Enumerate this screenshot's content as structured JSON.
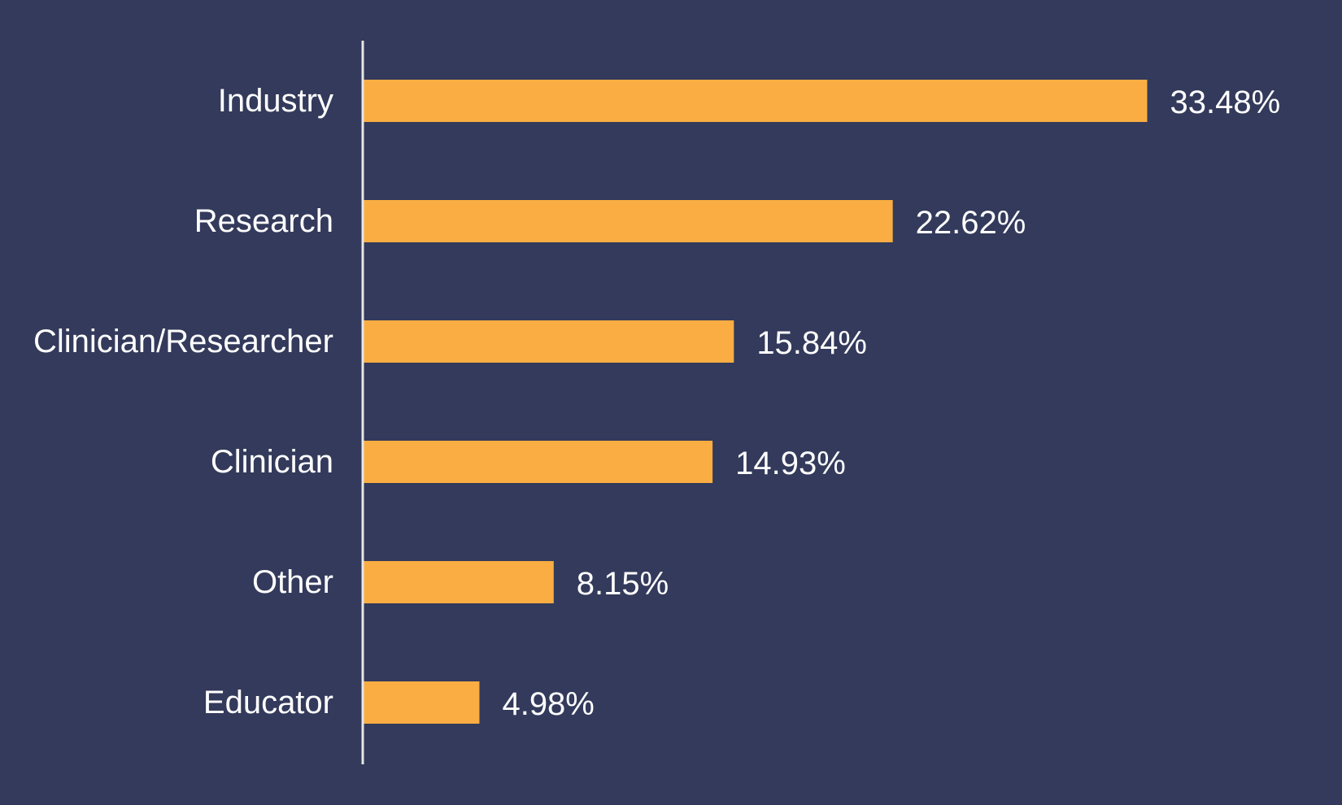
{
  "chart_data": {
    "type": "bar",
    "orientation": "horizontal",
    "categories": [
      "Industry",
      "Research",
      "Clinician/Researcher",
      "Clinician",
      "Other",
      "Educator"
    ],
    "values": [
      33.48,
      22.62,
      15.84,
      14.93,
      8.15,
      4.98
    ],
    "value_labels": [
      "33.48%",
      "22.62%",
      "15.84%",
      "14.93%",
      "8.15%",
      "4.98%"
    ],
    "unit": "%",
    "xlim": [
      0,
      33.48
    ],
    "grid": false,
    "legend": "none",
    "title": "",
    "xlabel": "",
    "ylabel": ""
  },
  "colors": {
    "background": "#333a5b",
    "bar": "#f9ad42",
    "axis": "#e6e6e6",
    "text": "#ffffff"
  }
}
